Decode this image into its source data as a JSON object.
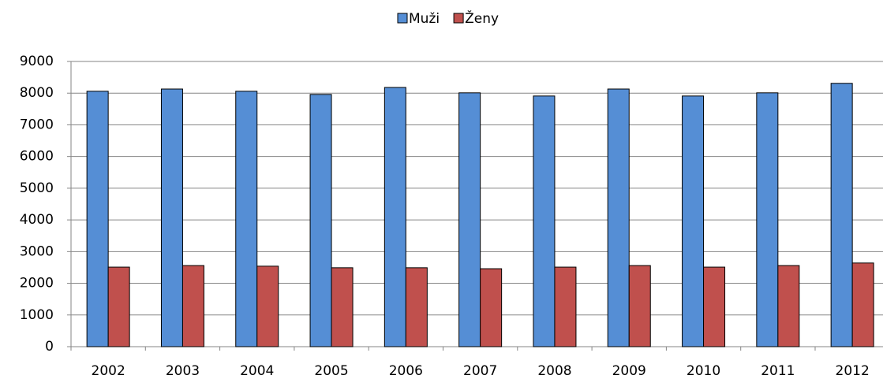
{
  "chart_data": {
    "type": "bar",
    "categories": [
      "2002",
      "2003",
      "2004",
      "2005",
      "2006",
      "2007",
      "2008",
      "2009",
      "2010",
      "2011",
      "2012"
    ],
    "series": [
      {
        "name": "Muži",
        "color": "#558ed5",
        "values": [
          8060,
          8130,
          8060,
          7960,
          8180,
          8010,
          7910,
          8130,
          7910,
          8010,
          8310
        ]
      },
      {
        "name": "Ženy",
        "color": "#c0504d",
        "values": [
          2510,
          2560,
          2540,
          2490,
          2490,
          2460,
          2510,
          2560,
          2510,
          2560,
          2640
        ]
      }
    ],
    "ylim": [
      0,
      9000
    ],
    "yticks": [
      0,
      1000,
      2000,
      3000,
      4000,
      5000,
      6000,
      7000,
      8000,
      9000
    ],
    "grid": true,
    "legend": "top"
  }
}
